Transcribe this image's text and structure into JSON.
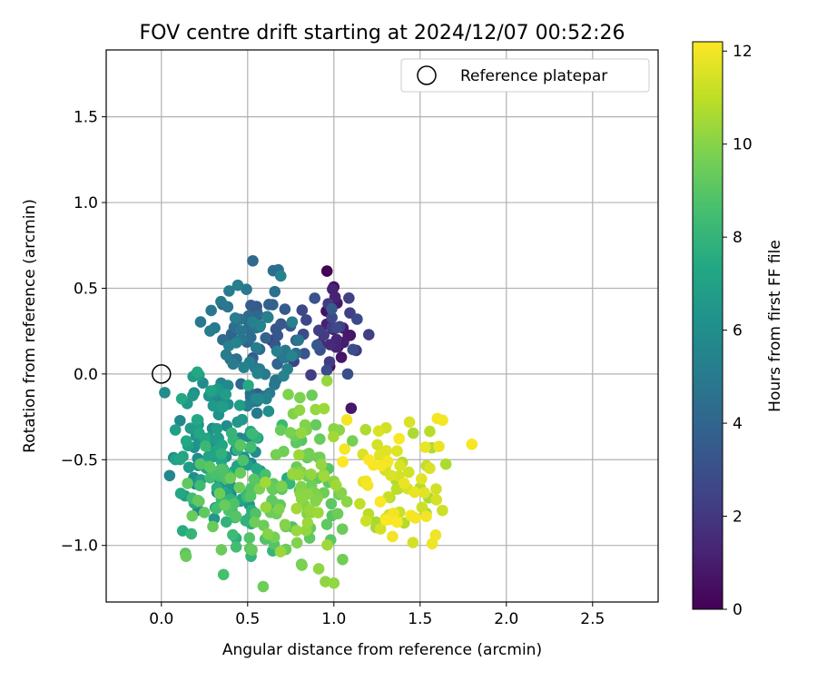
{
  "chart_data": {
    "type": "scatter",
    "title": "FOV centre drift starting at 2024/12/07 00:52:26",
    "xlabel": "Angular distance from reference (arcmin)",
    "ylabel": "Rotation from reference (arcmin)",
    "xlim": [
      -0.32,
      2.88
    ],
    "ylim": [
      -1.33,
      1.89
    ],
    "xticks": [
      "0.0",
      "0.5",
      "1.0",
      "1.5",
      "2.0",
      "2.5"
    ],
    "yticks": [
      "−1.0",
      "−0.5",
      "0.0",
      "0.5",
      "1.0",
      "1.5"
    ],
    "grid": true,
    "legend": {
      "position": "upper right",
      "entries": [
        "Reference platepar"
      ]
    },
    "reference_point": {
      "x": 0.0,
      "y": 0.0
    },
    "colorbar": {
      "label": "Hours from first FF file",
      "min": 0,
      "max": 12.2,
      "ticks": [
        "0",
        "2",
        "4",
        "6",
        "8",
        "10",
        "12"
      ],
      "colormap": "viridis"
    },
    "clusters": [
      {
        "hours": [
          0.0,
          1.8
        ],
        "x_range": [
          0.88,
          1.12
        ],
        "y_range": [
          -0.05,
          0.6
        ],
        "count": 18
      },
      {
        "hours": [
          1.8,
          3.5
        ],
        "x_range": [
          0.55,
          1.25
        ],
        "y_range": [
          -0.05,
          0.5
        ],
        "count": 32
      },
      {
        "hours": [
          3.5,
          5.5
        ],
        "x_range": [
          0.2,
          0.85
        ],
        "y_range": [
          -0.3,
          0.66
        ],
        "count": 90
      },
      {
        "hours": [
          5.5,
          7.5
        ],
        "x_range": [
          0.0,
          0.65
        ],
        "y_range": [
          -0.85,
          0.1
        ],
        "count": 115
      },
      {
        "hours": [
          7.5,
          9.5
        ],
        "x_range": [
          0.05,
          0.8
        ],
        "y_range": [
          -1.2,
          -0.2
        ],
        "count": 85
      },
      {
        "hours": [
          9.0,
          10.5
        ],
        "x_range": [
          0.55,
          1.15
        ],
        "y_range": [
          -1.25,
          -0.05
        ],
        "count": 100
      },
      {
        "hours": [
          10.5,
          12.2
        ],
        "x_range": [
          1.0,
          1.68
        ],
        "y_range": [
          -1.05,
          -0.25
        ],
        "count": 75
      }
    ],
    "outliers": [
      {
        "x": 0.53,
        "y": 0.66,
        "hours": 4.2
      },
      {
        "x": 0.96,
        "y": 0.6,
        "hours": 0.05
      },
      {
        "x": 1.8,
        "y": -0.41,
        "hours": 12.1
      },
      {
        "x": 1.6,
        "y": -0.26,
        "hours": 12.0
      },
      {
        "x": 1.63,
        "y": -0.27,
        "hours": 12.0
      },
      {
        "x": 1.57,
        "y": -0.99,
        "hours": 11.9
      },
      {
        "x": 1.59,
        "y": -0.94,
        "hours": 11.9
      },
      {
        "x": 1.0,
        "y": -1.22,
        "hours": 10.2
      },
      {
        "x": 0.59,
        "y": -1.24,
        "hours": 9.5
      },
      {
        "x": 0.36,
        "y": -1.17,
        "hours": 8.6
      },
      {
        "x": 1.1,
        "y": -0.2,
        "hours": 0.8
      },
      {
        "x": 1.08,
        "y": 0.0,
        "hours": 3.0
      },
      {
        "x": 0.96,
        "y": -0.04,
        "hours": 10.3
      }
    ]
  }
}
